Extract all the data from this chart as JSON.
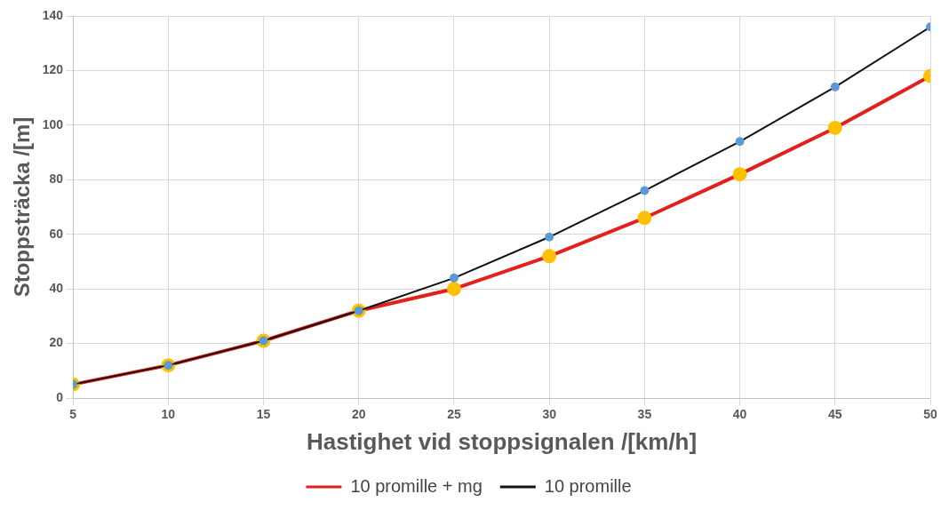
{
  "chart_data": {
    "type": "line",
    "xlabel": "Hastighet vid stoppsignalen /[km/h]",
    "ylabel": "Stoppsträcka /[m]",
    "x": [
      5,
      10,
      15,
      20,
      25,
      30,
      35,
      40,
      45,
      50
    ],
    "series": [
      {
        "name": "10 promille + mg",
        "color": "#e3211c",
        "colors": [
          "#ffc000",
          "#ffc000",
          "#ffc000",
          "#ffc000",
          "#ffc000",
          "#ffc000",
          "#ffc000",
          "#ffc000",
          "#ffc000",
          "#ffc000"
        ],
        "values": [
          5,
          12,
          21,
          32,
          40,
          52,
          66,
          82,
          99,
          118
        ]
      },
      {
        "name": "10 promille",
        "color": "#111111",
        "colors": [
          "#5b9bd5",
          "#5b9bd5",
          "#5b9bd5",
          "#5b9bd5",
          "#5b9bd5",
          "#5b9bd5",
          "#5b9bd5",
          "#5b9bd5",
          "#5b9bd5",
          "#5b9bd5"
        ],
        "values": [
          5,
          12,
          21,
          32,
          44,
          59,
          76,
          94,
          114,
          136
        ]
      }
    ],
    "xlim": [
      5,
      50
    ],
    "xticks": [
      5,
      10,
      15,
      20,
      25,
      30,
      35,
      40,
      45,
      50
    ],
    "ylim": [
      0,
      140
    ],
    "yticks": [
      0,
      20,
      40,
      60,
      80,
      100,
      120,
      140
    ],
    "grid": true,
    "legend": "bottom",
    "marker": "circle",
    "line_style": "solid"
  }
}
